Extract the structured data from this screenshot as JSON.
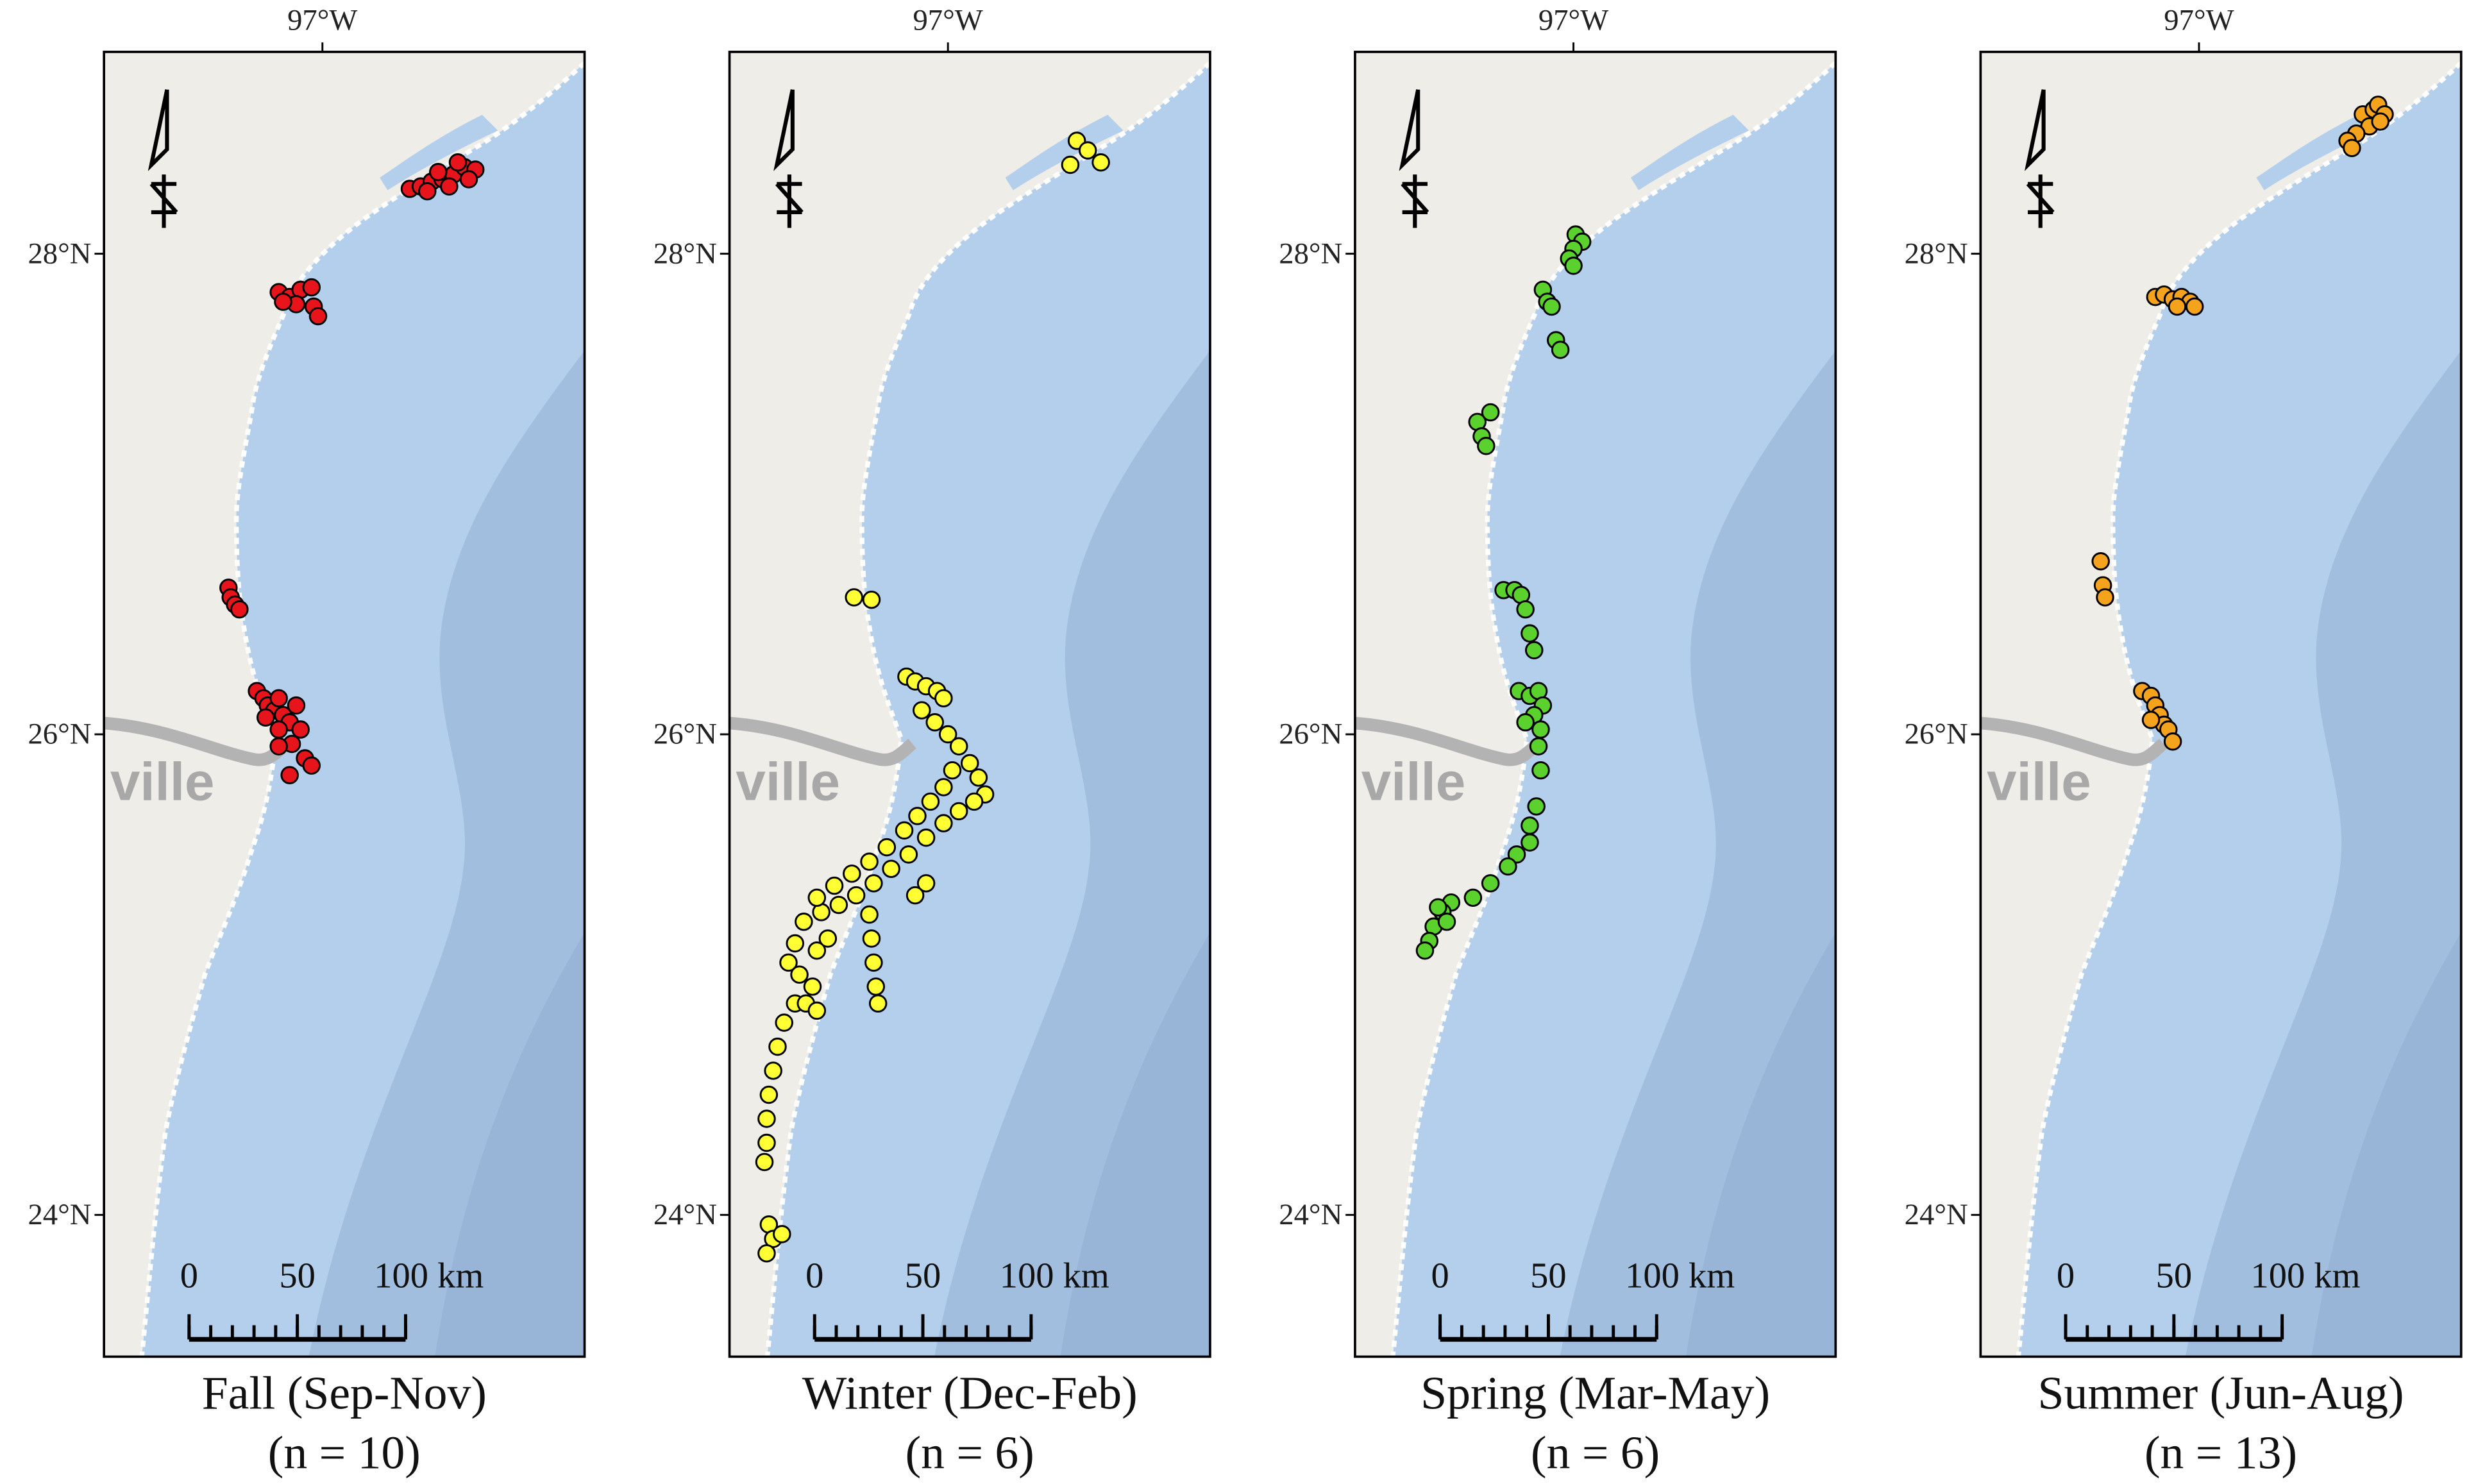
{
  "xlim": [
    -98.0,
    -95.8
  ],
  "ylim": [
    23.41,
    28.84
  ],
  "lon_ticks": [
    {
      "value": -97,
      "label": "97°W"
    }
  ],
  "lat_ticks": [
    {
      "value": 28,
      "label": "28°N"
    },
    {
      "value": 26,
      "label": "26°N"
    },
    {
      "value": 24,
      "label": "24°N"
    }
  ],
  "basemap_label": "ville",
  "scale_bar": {
    "ticks": [
      0,
      50,
      {
        "value": 100,
        "label": "100 km"
      }
    ],
    "minor_step": 10
  },
  "panels": [
    {
      "title": "Fall (Sep-Nov)",
      "subtitle": "(n = 10)",
      "color": "#e8141c",
      "points": [
        [
          -96.6,
          28.27
        ],
        [
          -96.55,
          28.28
        ],
        [
          -96.5,
          28.3
        ],
        [
          -96.45,
          28.31
        ],
        [
          -96.4,
          28.33
        ],
        [
          -96.35,
          28.36
        ],
        [
          -96.3,
          28.35
        ],
        [
          -96.52,
          28.26
        ],
        [
          -96.42,
          28.28
        ],
        [
          -96.38,
          28.38
        ],
        [
          -96.33,
          28.31
        ],
        [
          -96.47,
          28.34
        ],
        [
          -97.2,
          27.84
        ],
        [
          -97.15,
          27.82
        ],
        [
          -97.1,
          27.85
        ],
        [
          -97.05,
          27.86
        ],
        [
          -97.12,
          27.79
        ],
        [
          -97.04,
          27.78
        ],
        [
          -97.02,
          27.74
        ],
        [
          -97.18,
          27.8
        ],
        [
          -97.43,
          26.61
        ],
        [
          -97.42,
          26.57
        ],
        [
          -97.4,
          26.54
        ],
        [
          -97.38,
          26.52
        ],
        [
          -97.3,
          26.18
        ],
        [
          -97.27,
          26.15
        ],
        [
          -97.25,
          26.12
        ],
        [
          -97.22,
          26.1
        ],
        [
          -97.2,
          26.15
        ],
        [
          -97.18,
          26.08
        ],
        [
          -97.15,
          26.05
        ],
        [
          -97.12,
          26.12
        ],
        [
          -97.1,
          26.02
        ],
        [
          -97.2,
          26.02
        ],
        [
          -97.26,
          26.07
        ],
        [
          -97.14,
          25.96
        ],
        [
          -97.08,
          25.9
        ],
        [
          -97.15,
          25.83
        ],
        [
          -97.05,
          25.87
        ],
        [
          -97.2,
          25.95
        ]
      ]
    },
    {
      "title": "Winter (Dec-Feb)",
      "subtitle": "(n = 6)",
      "color": "#ffff33",
      "points": [
        [
          -96.41,
          28.47
        ],
        [
          -96.36,
          28.43
        ],
        [
          -96.3,
          28.38
        ],
        [
          -96.44,
          28.37
        ],
        [
          -97.43,
          26.57
        ],
        [
          -97.35,
          26.56
        ],
        [
          -97.19,
          26.24
        ],
        [
          -97.15,
          26.22
        ],
        [
          -97.1,
          26.2
        ],
        [
          -97.05,
          26.18
        ],
        [
          -97.02,
          26.15
        ],
        [
          -97.12,
          26.1
        ],
        [
          -97.06,
          26.05
        ],
        [
          -97.0,
          26.0
        ],
        [
          -96.95,
          25.95
        ],
        [
          -96.9,
          25.88
        ],
        [
          -96.86,
          25.82
        ],
        [
          -96.83,
          25.75
        ],
        [
          -96.88,
          25.72
        ],
        [
          -96.95,
          25.68
        ],
        [
          -97.02,
          25.63
        ],
        [
          -97.1,
          25.57
        ],
        [
          -97.18,
          25.5
        ],
        [
          -97.26,
          25.44
        ],
        [
          -97.34,
          25.38
        ],
        [
          -97.42,
          25.33
        ],
        [
          -97.5,
          25.29
        ],
        [
          -97.58,
          25.26
        ],
        [
          -97.66,
          25.22
        ],
        [
          -97.7,
          25.13
        ],
        [
          -97.73,
          25.05
        ],
        [
          -97.68,
          25.0
        ],
        [
          -97.62,
          24.95
        ],
        [
          -97.7,
          24.88
        ],
        [
          -97.75,
          24.8
        ],
        [
          -97.78,
          24.7
        ],
        [
          -97.8,
          24.6
        ],
        [
          -97.82,
          24.5
        ],
        [
          -97.83,
          24.4
        ],
        [
          -97.83,
          24.3
        ],
        [
          -97.84,
          24.22
        ],
        [
          -97.82,
          23.96
        ],
        [
          -97.8,
          23.9
        ],
        [
          -97.83,
          23.84
        ],
        [
          -97.76,
          23.92
        ],
        [
          -96.98,
          25.85
        ],
        [
          -97.02,
          25.78
        ],
        [
          -97.08,
          25.72
        ],
        [
          -97.14,
          25.66
        ],
        [
          -97.2,
          25.6
        ],
        [
          -97.28,
          25.53
        ],
        [
          -97.36,
          25.47
        ],
        [
          -97.44,
          25.42
        ],
        [
          -97.52,
          25.37
        ],
        [
          -97.6,
          25.32
        ],
        [
          -97.36,
          25.25
        ],
        [
          -97.35,
          25.15
        ],
        [
          -97.34,
          25.05
        ],
        [
          -97.33,
          24.95
        ],
        [
          -97.32,
          24.88
        ],
        [
          -97.1,
          25.38
        ],
        [
          -97.15,
          25.33
        ],
        [
          -97.6,
          25.1
        ],
        [
          -97.55,
          25.15
        ],
        [
          -97.65,
          24.88
        ],
        [
          -97.6,
          24.85
        ]
      ]
    },
    {
      "title": "Spring (Mar-May)",
      "subtitle": "(n = 6)",
      "color": "#5ad12c",
      "points": [
        [
          -96.99,
          28.08
        ],
        [
          -96.96,
          28.05
        ],
        [
          -97.0,
          28.02
        ],
        [
          -97.02,
          27.98
        ],
        [
          -97.0,
          27.95
        ],
        [
          -97.14,
          27.85
        ],
        [
          -97.12,
          27.8
        ],
        [
          -97.1,
          27.78
        ],
        [
          -97.08,
          27.64
        ],
        [
          -97.06,
          27.6
        ],
        [
          -97.44,
          27.3
        ],
        [
          -97.42,
          27.24
        ],
        [
          -97.4,
          27.2
        ],
        [
          -97.38,
          27.34
        ],
        [
          -97.32,
          26.6
        ],
        [
          -97.27,
          26.6
        ],
        [
          -97.24,
          26.58
        ],
        [
          -97.22,
          26.52
        ],
        [
          -97.2,
          26.42
        ],
        [
          -97.18,
          26.35
        ],
        [
          -97.25,
          26.18
        ],
        [
          -97.2,
          26.16
        ],
        [
          -97.16,
          26.18
        ],
        [
          -97.14,
          26.12
        ],
        [
          -97.18,
          26.08
        ],
        [
          -97.22,
          26.05
        ],
        [
          -97.15,
          26.02
        ],
        [
          -97.16,
          25.95
        ],
        [
          -97.15,
          25.85
        ],
        [
          -97.17,
          25.7
        ],
        [
          -97.2,
          25.62
        ],
        [
          -97.2,
          25.55
        ],
        [
          -97.26,
          25.5
        ],
        [
          -97.3,
          25.45
        ],
        [
          -97.38,
          25.38
        ],
        [
          -97.46,
          25.32
        ],
        [
          -97.56,
          25.3
        ],
        [
          -97.6,
          25.26
        ],
        [
          -97.64,
          25.2
        ],
        [
          -97.62,
          25.28
        ],
        [
          -97.66,
          25.14
        ],
        [
          -97.68,
          25.1
        ],
        [
          -97.58,
          25.22
        ]
      ]
    },
    {
      "title": "Summer (Jun-Aug)",
      "subtitle": "(n = 13)",
      "color": "#f5a31c",
      "points": [
        [
          -96.25,
          28.58
        ],
        [
          -96.2,
          28.6
        ],
        [
          -96.18,
          28.62
        ],
        [
          -96.15,
          28.58
        ],
        [
          -96.22,
          28.53
        ],
        [
          -96.28,
          28.5
        ],
        [
          -96.32,
          28.47
        ],
        [
          -96.3,
          28.44
        ],
        [
          -96.17,
          28.55
        ],
        [
          -97.2,
          27.82
        ],
        [
          -97.16,
          27.83
        ],
        [
          -97.12,
          27.81
        ],
        [
          -97.08,
          27.82
        ],
        [
          -97.04,
          27.8
        ],
        [
          -97.1,
          27.78
        ],
        [
          -97.02,
          27.78
        ],
        [
          -97.45,
          26.72
        ],
        [
          -97.44,
          26.62
        ],
        [
          -97.43,
          26.57
        ],
        [
          -97.26,
          26.18
        ],
        [
          -97.22,
          26.16
        ],
        [
          -97.2,
          26.12
        ],
        [
          -97.18,
          26.08
        ],
        [
          -97.16,
          26.04
        ],
        [
          -97.14,
          26.02
        ],
        [
          -97.12,
          25.97
        ],
        [
          -97.22,
          26.06
        ]
      ]
    }
  ]
}
